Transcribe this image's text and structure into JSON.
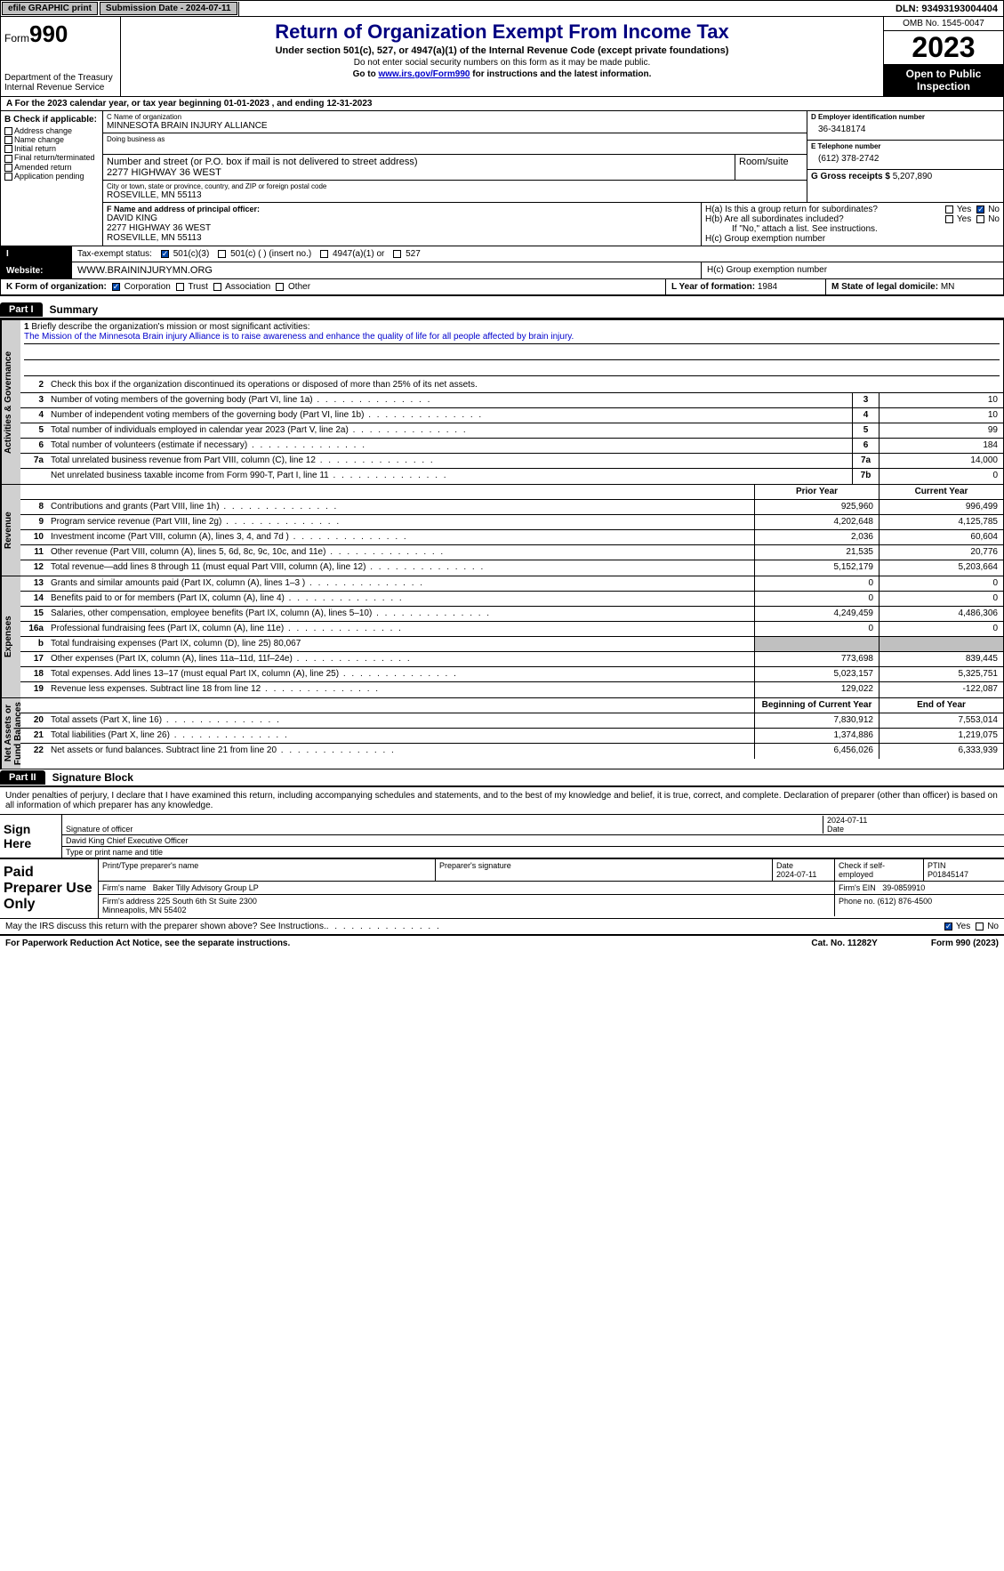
{
  "topbar": {
    "efile": "efile GRAPHIC print",
    "submission": "Submission Date - 2024-07-11",
    "dln": "DLN: 93493193004404"
  },
  "header": {
    "form_prefix": "Form",
    "form_no": "990",
    "dept": "Department of the Treasury\nInternal Revenue Service",
    "title": "Return of Organization Exempt From Income Tax",
    "subtitle": "Under section 501(c), 527, or 4947(a)(1) of the Internal Revenue Code (except private foundations)",
    "note": "Do not enter social security numbers on this form as it may be made public.",
    "link_pre": "Go to ",
    "link": "www.irs.gov/Form990",
    "link_post": " for instructions and the latest information.",
    "omb": "OMB No. 1545-0047",
    "year": "2023",
    "public": "Open to Public Inspection"
  },
  "row_a": "A For the 2023 calendar year, or tax year beginning 01-01-2023   , and ending 12-31-2023",
  "col_b": {
    "header": "B Check if applicable:",
    "opts": [
      "Address change",
      "Name change",
      "Initial return",
      "Final return/terminated",
      "Amended return",
      "Application pending"
    ]
  },
  "c": {
    "lbl_name": "C Name of organization",
    "name": "MINNESOTA BRAIN INJURY ALLIANCE",
    "lbl_dba": "Doing business as",
    "dba": "",
    "lbl_street": "Number and street (or P.O. box if mail is not delivered to street address)",
    "street": "2277 HIGHWAY 36 WEST",
    "lbl_room": "Room/suite",
    "lbl_city": "City or town, state or province, country, and ZIP or foreign postal code",
    "city": "ROSEVILLE, MN  55113"
  },
  "d": {
    "lbl": "D Employer identification number",
    "val": "36-3418174"
  },
  "e": {
    "lbl": "E Telephone number",
    "val": "(612) 378-2742"
  },
  "g": {
    "lbl": "G Gross receipts $",
    "val": "5,207,890"
  },
  "f": {
    "lbl": "F  Name and address of principal officer:",
    "name": "DAVID KING",
    "addr1": "2277 HIGHWAY 36 WEST",
    "addr2": "ROSEVILLE, MN  55113"
  },
  "h": {
    "a": "H(a)  Is this a group return for subordinates?",
    "b": "H(b)  Are all subordinates included?",
    "note": "If \"No,\" attach a list. See instructions.",
    "c": "H(c)  Group exemption number"
  },
  "i": {
    "lbl": "Tax-exempt status:",
    "opts": [
      "501(c)(3)",
      "501(c) (  ) (insert no.)",
      "4947(a)(1) or",
      "527"
    ]
  },
  "j": {
    "lbl": "Website:",
    "val": "WWW.BRAININJURYMN.ORG"
  },
  "k": {
    "lbl": "K Form of organization:",
    "opts": [
      "Corporation",
      "Trust",
      "Association",
      "Other"
    ]
  },
  "l": {
    "lbl": "L Year of formation:",
    "val": "1984"
  },
  "m": {
    "lbl": "M State of legal domicile:",
    "val": "MN"
  },
  "part1": {
    "tag": "Part I",
    "title": "Summary"
  },
  "mission": {
    "prompt": "Briefly describe the organization's mission or most significant activities:",
    "text": "The Mission of the Minnesota Brain injury Alliance is to raise awareness and enhance the quality of life for all people affected by brain injury."
  },
  "line2": "Check this box       if the organization discontinued its operations or disposed of more than 25% of its net assets.",
  "gov_lines": [
    {
      "n": "3",
      "d": "Number of voting members of the governing body (Part VI, line 1a)",
      "box": "3",
      "v": "10"
    },
    {
      "n": "4",
      "d": "Number of independent voting members of the governing body (Part VI, line 1b)",
      "box": "4",
      "v": "10"
    },
    {
      "n": "5",
      "d": "Total number of individuals employed in calendar year 2023 (Part V, line 2a)",
      "box": "5",
      "v": "99"
    },
    {
      "n": "6",
      "d": "Total number of volunteers (estimate if necessary)",
      "box": "6",
      "v": "184"
    },
    {
      "n": "7a",
      "d": "Total unrelated business revenue from Part VIII, column (C), line 12",
      "box": "7a",
      "v": "14,000"
    },
    {
      "n": "",
      "d": "Net unrelated business taxable income from Form 990-T, Part I, line 11",
      "box": "7b",
      "v": "0"
    }
  ],
  "rev_hdr": {
    "prior": "Prior Year",
    "current": "Current Year"
  },
  "rev_lines": [
    {
      "n": "8",
      "d": "Contributions and grants (Part VIII, line 1h)",
      "p": "925,960",
      "c": "996,499"
    },
    {
      "n": "9",
      "d": "Program service revenue (Part VIII, line 2g)",
      "p": "4,202,648",
      "c": "4,125,785"
    },
    {
      "n": "10",
      "d": "Investment income (Part VIII, column (A), lines 3, 4, and 7d )",
      "p": "2,036",
      "c": "60,604"
    },
    {
      "n": "11",
      "d": "Other revenue (Part VIII, column (A), lines 5, 6d, 8c, 9c, 10c, and 11e)",
      "p": "21,535",
      "c": "20,776"
    },
    {
      "n": "12",
      "d": "Total revenue—add lines 8 through 11 (must equal Part VIII, column (A), line 12)",
      "p": "5,152,179",
      "c": "5,203,664"
    }
  ],
  "exp_lines": [
    {
      "n": "13",
      "d": "Grants and similar amounts paid (Part IX, column (A), lines 1–3 )",
      "p": "0",
      "c": "0"
    },
    {
      "n": "14",
      "d": "Benefits paid to or for members (Part IX, column (A), line 4)",
      "p": "0",
      "c": "0"
    },
    {
      "n": "15",
      "d": "Salaries, other compensation, employee benefits (Part IX, column (A), lines 5–10)",
      "p": "4,249,459",
      "c": "4,486,306"
    },
    {
      "n": "16a",
      "d": "Professional fundraising fees (Part IX, column (A), line 11e)",
      "p": "0",
      "c": "0"
    },
    {
      "n": "b",
      "d": "Total fundraising expenses (Part IX, column (D), line 25) 80,067",
      "p": "",
      "c": "",
      "grey": true
    },
    {
      "n": "17",
      "d": "Other expenses (Part IX, column (A), lines 11a–11d, 11f–24e)",
      "p": "773,698",
      "c": "839,445"
    },
    {
      "n": "18",
      "d": "Total expenses. Add lines 13–17 (must equal Part IX, column (A), line 25)",
      "p": "5,023,157",
      "c": "5,325,751"
    },
    {
      "n": "19",
      "d": "Revenue less expenses. Subtract line 18 from line 12",
      "p": "129,022",
      "c": "-122,087"
    }
  ],
  "net_hdr": {
    "prior": "Beginning of Current Year",
    "current": "End of Year"
  },
  "net_lines": [
    {
      "n": "20",
      "d": "Total assets (Part X, line 16)",
      "p": "7,830,912",
      "c": "7,553,014"
    },
    {
      "n": "21",
      "d": "Total liabilities (Part X, line 26)",
      "p": "1,374,886",
      "c": "1,219,075"
    },
    {
      "n": "22",
      "d": "Net assets or fund balances. Subtract line 21 from line 20",
      "p": "6,456,026",
      "c": "6,333,939"
    }
  ],
  "vtabs": {
    "gov": "Activities & Governance",
    "rev": "Revenue",
    "exp": "Expenses",
    "net": "Net Assets or\nFund Balances"
  },
  "part2": {
    "tag": "Part II",
    "title": "Signature Block"
  },
  "sig": {
    "declaration": "Under penalties of perjury, I declare that I have examined this return, including accompanying schedules and statements, and to the best of my knowledge and belief, it is true, correct, and complete. Declaration of preparer (other than officer) is based on all information of which preparer has any knowledge.",
    "sign_here": "Sign Here",
    "sig_officer": "Signature of officer",
    "officer_name": "David King Chief Executive Officer",
    "date_lbl": "Date",
    "date": "2024-07-11",
    "type_name": "Type or print name and title"
  },
  "prep": {
    "header": "Paid Preparer Use Only",
    "col1": "Print/Type preparer's name",
    "col2": "Preparer's signature",
    "col3_lbl": "Date",
    "col3": "2024-07-11",
    "col4_lbl": "Check       if self-employed",
    "col5_lbl": "PTIN",
    "col5": "P01845147",
    "firm_lbl": "Firm's name",
    "firm": "Baker Tilly Advisory Group LP",
    "ein_lbl": "Firm's EIN",
    "ein": "39-0859910",
    "addr_lbl": "Firm's address",
    "addr": "225 South 6th St Suite 2300\nMinneapolis, MN  55402",
    "phone_lbl": "Phone no.",
    "phone": "(612) 876-4500"
  },
  "discuss": "May the IRS discuss this return with the preparer shown above? See Instructions.",
  "footer": {
    "left": "For Paperwork Reduction Act Notice, see the separate instructions.",
    "mid": "Cat. No. 11282Y",
    "right": "Form 990 (2023)"
  },
  "yn": {
    "yes": "Yes",
    "no": "No"
  }
}
